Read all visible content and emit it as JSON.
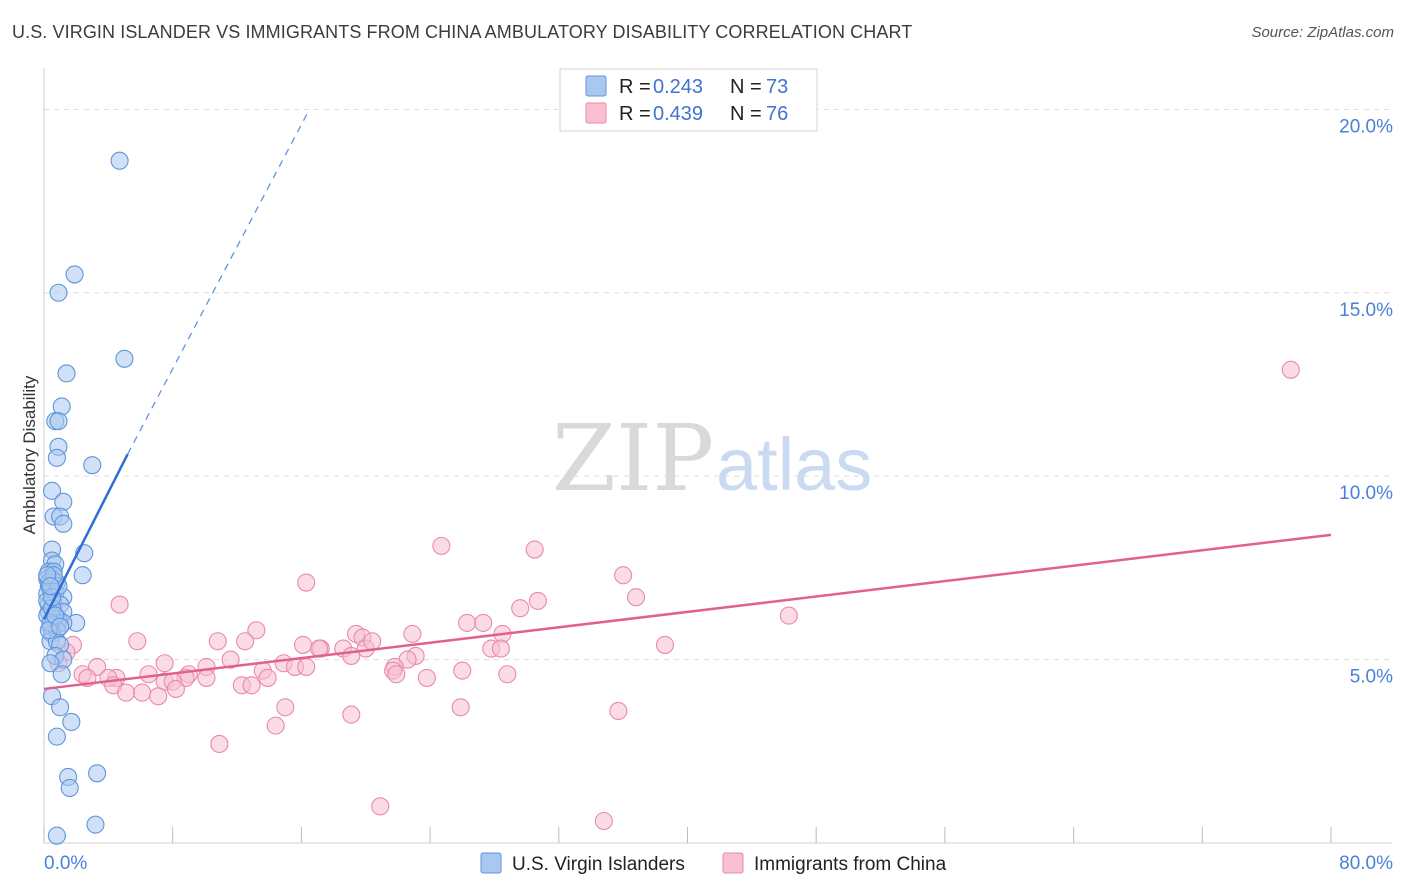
{
  "title": "U.S. VIRGIN ISLANDER VS IMMIGRANTS FROM CHINA AMBULATORY DISABILITY CORRELATION CHART",
  "source": "Source: ZipAtlas.com",
  "watermark": {
    "zip": "ZIP",
    "atlas": "atlas"
  },
  "colors": {
    "blue_fill": "#a9c8f0",
    "blue_stroke": "#5f95dc",
    "blue_line": "#2d6fd2",
    "pink_fill": "#f7bfd0",
    "pink_stroke": "#e98aaa",
    "pink_line": "#e2608e",
    "tick_text": "#4a80d8",
    "grid": "#dcdcdc"
  },
  "legend": {
    "rows": [
      {
        "r_label": "R =",
        "r_value": "0.243",
        "n_label": "N =",
        "n_value": "73"
      },
      {
        "r_label": "R =",
        "r_value": "0.439",
        "n_label": "N =",
        "n_value": "76"
      }
    ]
  },
  "chart_data": {
    "type": "scatter",
    "title": "U.S. VIRGIN ISLANDER VS IMMIGRANTS FROM CHINA AMBULATORY DISABILITY CORRELATION CHART",
    "xlabel": "",
    "ylabel": "Ambulatory Disability",
    "xlim": [
      0,
      80
    ],
    "ylim": [
      0,
      20.8
    ],
    "x_tick_labels": [
      "0.0%",
      "80.0%"
    ],
    "y_ticks": [
      5,
      10,
      15,
      20
    ],
    "y_tick_labels": [
      "5.0%",
      "10.0%",
      "15.0%",
      "20.0%"
    ],
    "grid": true,
    "legend_position": "top-center",
    "series": [
      {
        "name": "U.S. Virgin Islanders",
        "color": "#a9c8f0",
        "trend": {
          "x0": 0.0,
          "y0": 6.1,
          "x1": 5.2,
          "y1": 10.6,
          "dash_to_x": 16.5,
          "dash_to_y": 20.0
        },
        "points": [
          [
            4.7,
            18.6
          ],
          [
            1.9,
            15.5
          ],
          [
            0.9,
            15.0
          ],
          [
            5.0,
            13.2
          ],
          [
            1.4,
            12.8
          ],
          [
            1.1,
            11.9
          ],
          [
            0.7,
            11.5
          ],
          [
            0.9,
            11.5
          ],
          [
            0.9,
            10.8
          ],
          [
            0.8,
            10.5
          ],
          [
            3.0,
            10.3
          ],
          [
            0.5,
            9.6
          ],
          [
            1.2,
            9.3
          ],
          [
            0.6,
            8.9
          ],
          [
            1.0,
            8.9
          ],
          [
            1.2,
            8.7
          ],
          [
            0.5,
            8.0
          ],
          [
            2.5,
            7.9
          ],
          [
            0.5,
            7.7
          ],
          [
            0.7,
            7.6
          ],
          [
            0.3,
            7.4
          ],
          [
            0.6,
            7.4
          ],
          [
            2.4,
            7.3
          ],
          [
            0.2,
            7.2
          ],
          [
            0.5,
            7.2
          ],
          [
            0.8,
            7.1
          ],
          [
            0.3,
            7.0
          ],
          [
            0.4,
            6.9
          ],
          [
            0.6,
            6.9
          ],
          [
            0.2,
            6.8
          ],
          [
            0.7,
            6.8
          ],
          [
            1.2,
            6.7
          ],
          [
            0.3,
            6.5
          ],
          [
            0.6,
            6.5
          ],
          [
            1.0,
            6.5
          ],
          [
            0.3,
            6.3
          ],
          [
            1.2,
            6.3
          ],
          [
            0.2,
            6.2
          ],
          [
            0.6,
            6.1
          ],
          [
            0.9,
            6.1
          ],
          [
            2.0,
            6.0
          ],
          [
            1.2,
            6.0
          ],
          [
            0.4,
            5.9
          ],
          [
            0.8,
            5.8
          ],
          [
            0.5,
            5.7
          ],
          [
            0.4,
            5.5
          ],
          [
            0.8,
            5.5
          ],
          [
            1.0,
            5.4
          ],
          [
            0.7,
            5.1
          ],
          [
            1.2,
            5.0
          ],
          [
            0.4,
            4.9
          ],
          [
            1.1,
            4.6
          ],
          [
            0.5,
            4.0
          ],
          [
            1.0,
            3.7
          ],
          [
            1.7,
            3.3
          ],
          [
            0.8,
            2.9
          ],
          [
            1.5,
            1.8
          ],
          [
            1.6,
            1.5
          ],
          [
            3.3,
            1.9
          ],
          [
            3.2,
            0.5
          ],
          [
            0.8,
            0.2
          ],
          [
            0.3,
            7.1
          ],
          [
            0.2,
            6.6
          ],
          [
            0.5,
            6.4
          ],
          [
            0.9,
            7.0
          ],
          [
            0.4,
            6.0
          ],
          [
            0.6,
            7.3
          ],
          [
            0.3,
            5.8
          ],
          [
            0.7,
            6.2
          ],
          [
            0.2,
            7.3
          ],
          [
            0.5,
            6.7
          ],
          [
            1.0,
            5.9
          ],
          [
            0.4,
            7.0
          ]
        ]
      },
      {
        "name": "Immigrants from China",
        "color": "#f7bfd0",
        "trend": {
          "x0": 0.0,
          "y0": 4.2,
          "x1": 80.0,
          "y1": 8.4
        },
        "points": [
          [
            77.5,
            12.9
          ],
          [
            24.7,
            8.1
          ],
          [
            30.5,
            8.0
          ],
          [
            36.0,
            7.3
          ],
          [
            16.3,
            7.1
          ],
          [
            36.8,
            6.7
          ],
          [
            30.7,
            6.6
          ],
          [
            4.7,
            6.5
          ],
          [
            29.6,
            6.4
          ],
          [
            46.3,
            6.2
          ],
          [
            26.3,
            6.0
          ],
          [
            27.3,
            6.0
          ],
          [
            0.9,
            6.0
          ],
          [
            13.2,
            5.8
          ],
          [
            19.4,
            5.7
          ],
          [
            22.9,
            5.7
          ],
          [
            28.5,
            5.7
          ],
          [
            19.8,
            5.6
          ],
          [
            5.8,
            5.5
          ],
          [
            10.8,
            5.5
          ],
          [
            12.5,
            5.5
          ],
          [
            38.6,
            5.4
          ],
          [
            16.1,
            5.4
          ],
          [
            17.2,
            5.3
          ],
          [
            18.6,
            5.3
          ],
          [
            20.0,
            5.3
          ],
          [
            27.8,
            5.3
          ],
          [
            28.4,
            5.3
          ],
          [
            1.8,
            5.4
          ],
          [
            1.4,
            5.2
          ],
          [
            0.9,
            4.9
          ],
          [
            19.1,
            5.1
          ],
          [
            23.1,
            5.1
          ],
          [
            11.6,
            5.0
          ],
          [
            22.6,
            5.0
          ],
          [
            7.5,
            4.9
          ],
          [
            14.9,
            4.9
          ],
          [
            15.6,
            4.8
          ],
          [
            16.3,
            4.8
          ],
          [
            21.8,
            4.8
          ],
          [
            10.1,
            4.8
          ],
          [
            3.3,
            4.8
          ],
          [
            21.7,
            4.7
          ],
          [
            13.6,
            4.7
          ],
          [
            26.0,
            4.7
          ],
          [
            21.9,
            4.6
          ],
          [
            28.8,
            4.6
          ],
          [
            6.5,
            4.6
          ],
          [
            2.4,
            4.6
          ],
          [
            9.0,
            4.6
          ],
          [
            4.5,
            4.5
          ],
          [
            4.0,
            4.5
          ],
          [
            2.7,
            4.5
          ],
          [
            10.1,
            4.5
          ],
          [
            8.8,
            4.5
          ],
          [
            13.9,
            4.5
          ],
          [
            23.8,
            4.5
          ],
          [
            7.5,
            4.4
          ],
          [
            8.0,
            4.4
          ],
          [
            4.3,
            4.3
          ],
          [
            12.3,
            4.3
          ],
          [
            12.9,
            4.3
          ],
          [
            8.2,
            4.2
          ],
          [
            5.1,
            4.1
          ],
          [
            6.1,
            4.1
          ],
          [
            7.1,
            4.0
          ],
          [
            15.0,
            3.7
          ],
          [
            25.9,
            3.7
          ],
          [
            35.7,
            3.6
          ],
          [
            14.4,
            3.2
          ],
          [
            19.1,
            3.5
          ],
          [
            10.9,
            2.7
          ],
          [
            20.9,
            1.0
          ],
          [
            34.8,
            0.6
          ],
          [
            17.1,
            5.3
          ],
          [
            20.4,
            5.5
          ]
        ]
      }
    ]
  },
  "bottom_legend": {
    "items": [
      {
        "label": "U.S. Virgin Islanders"
      },
      {
        "label": "Immigrants from China"
      }
    ]
  }
}
